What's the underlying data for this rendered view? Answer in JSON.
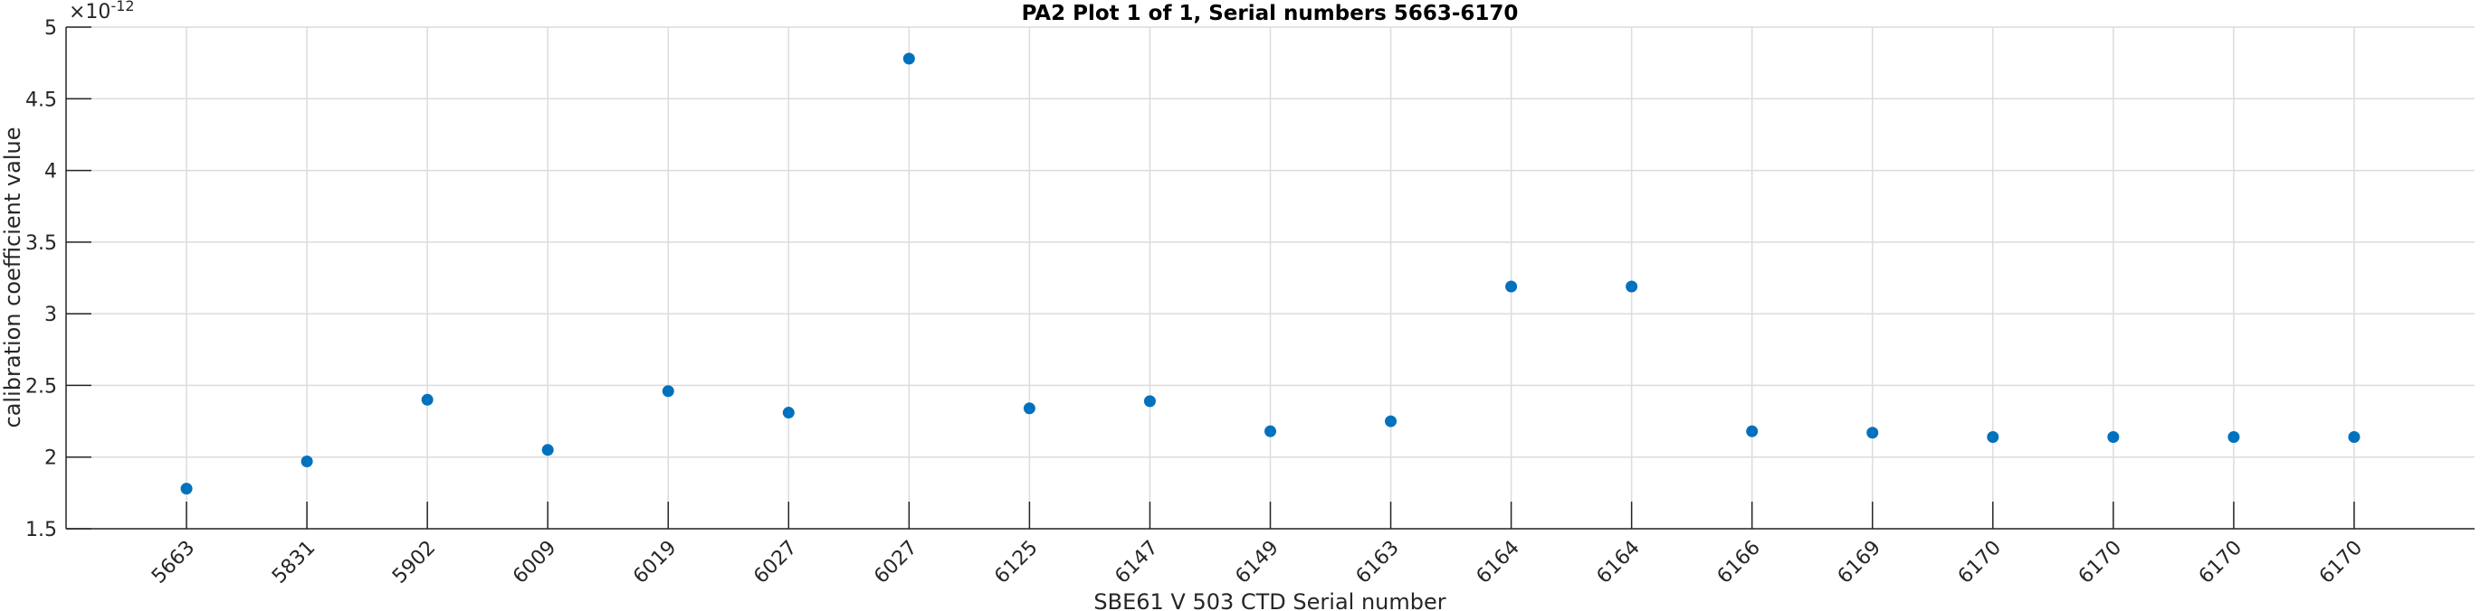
{
  "chart_data": {
    "type": "scatter",
    "title": "PA2 Plot 1 of 1, Serial numbers 5663-6170",
    "xlabel": "SBE61 V 503 CTD Serial number",
    "ylabel": "calibration coefficient value",
    "y_exponent_label": "×10",
    "y_exponent": "-12",
    "ylim": [
      1.5,
      5
    ],
    "yticks": [
      "1.5",
      "2",
      "2.5",
      "3",
      "3.5",
      "4",
      "4.5",
      "5"
    ],
    "ytick_values": [
      1.5,
      2,
      2.5,
      3,
      3.5,
      4,
      4.5,
      5
    ],
    "xlim": [
      0,
      20
    ],
    "grid": true,
    "marker_color": "#0072BD",
    "categories": [
      "5663",
      "5831",
      "5902",
      "6009",
      "6019",
      "6027",
      "6027",
      "6125",
      "6147",
      "6149",
      "6163",
      "6164",
      "6164",
      "6166",
      "6169",
      "6170",
      "6170",
      "6170",
      "6170"
    ],
    "values": [
      1.78,
      1.97,
      2.4,
      2.05,
      2.46,
      2.31,
      4.78,
      2.34,
      2.39,
      2.18,
      2.25,
      3.19,
      3.19,
      2.18,
      2.17,
      2.14,
      2.14,
      2.14,
      2.14
    ]
  }
}
